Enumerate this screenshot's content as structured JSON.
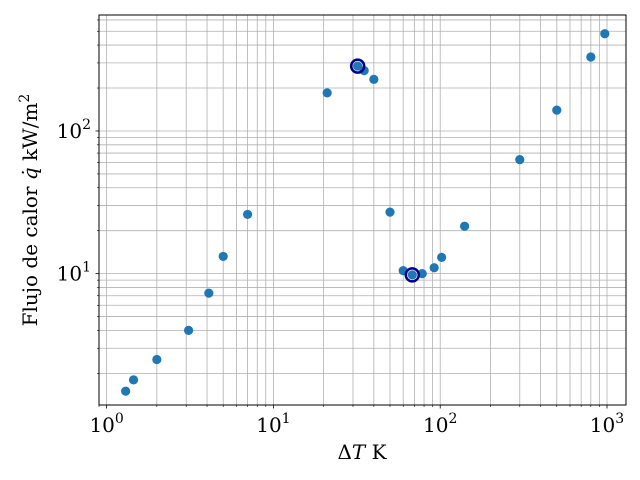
{
  "chart_data": {
    "type": "scatter",
    "xlabel_parts": {
      "delta": "Δ",
      "var": "T",
      "unit": " K"
    },
    "ylabel_parts": {
      "prefix": "Flujo de calor ",
      "var": "q̇",
      "unit": " kW/m",
      "unit_sup": "2"
    },
    "xscale": "log",
    "yscale": "log",
    "xlim": [
      0.9,
      1300
    ],
    "ylim": [
      1.2,
      650
    ],
    "grid": "both (major and minor)",
    "x_ticks": [
      {
        "value": 1,
        "base": "10",
        "exp": "0"
      },
      {
        "value": 10,
        "base": "10",
        "exp": "1"
      },
      {
        "value": 100,
        "base": "10",
        "exp": "2"
      },
      {
        "value": 1000,
        "base": "10",
        "exp": "3"
      }
    ],
    "y_ticks": [
      {
        "value": 10,
        "base": "10",
        "exp": "1"
      },
      {
        "value": 100,
        "base": "10",
        "exp": "2"
      }
    ],
    "series": [
      {
        "marker_color": "#1f77b4",
        "points": [
          {
            "x": 1.3,
            "y": 1.5
          },
          {
            "x": 1.45,
            "y": 1.8
          },
          {
            "x": 2.0,
            "y": 2.5
          },
          {
            "x": 3.1,
            "y": 4.0
          },
          {
            "x": 4.1,
            "y": 7.3
          },
          {
            "x": 5.0,
            "y": 13.2
          },
          {
            "x": 7.0,
            "y": 26
          },
          {
            "x": 21,
            "y": 185
          },
          {
            "x": 32,
            "y": 285
          },
          {
            "x": 35,
            "y": 265
          },
          {
            "x": 40,
            "y": 230
          },
          {
            "x": 50,
            "y": 27
          },
          {
            "x": 60,
            "y": 10.5
          },
          {
            "x": 68,
            "y": 9.8
          },
          {
            "x": 78,
            "y": 10
          },
          {
            "x": 92,
            "y": 11
          },
          {
            "x": 102,
            "y": 13
          },
          {
            "x": 140,
            "y": 21.5
          },
          {
            "x": 300,
            "y": 63
          },
          {
            "x": 500,
            "y": 140
          },
          {
            "x": 800,
            "y": 330
          },
          {
            "x": 970,
            "y": 480
          }
        ]
      }
    ],
    "highlighted_points": [
      {
        "x": 32,
        "y": 285,
        "ring_color": "#00008b"
      },
      {
        "x": 68,
        "y": 9.8,
        "ring_color": "#00008b"
      }
    ]
  }
}
